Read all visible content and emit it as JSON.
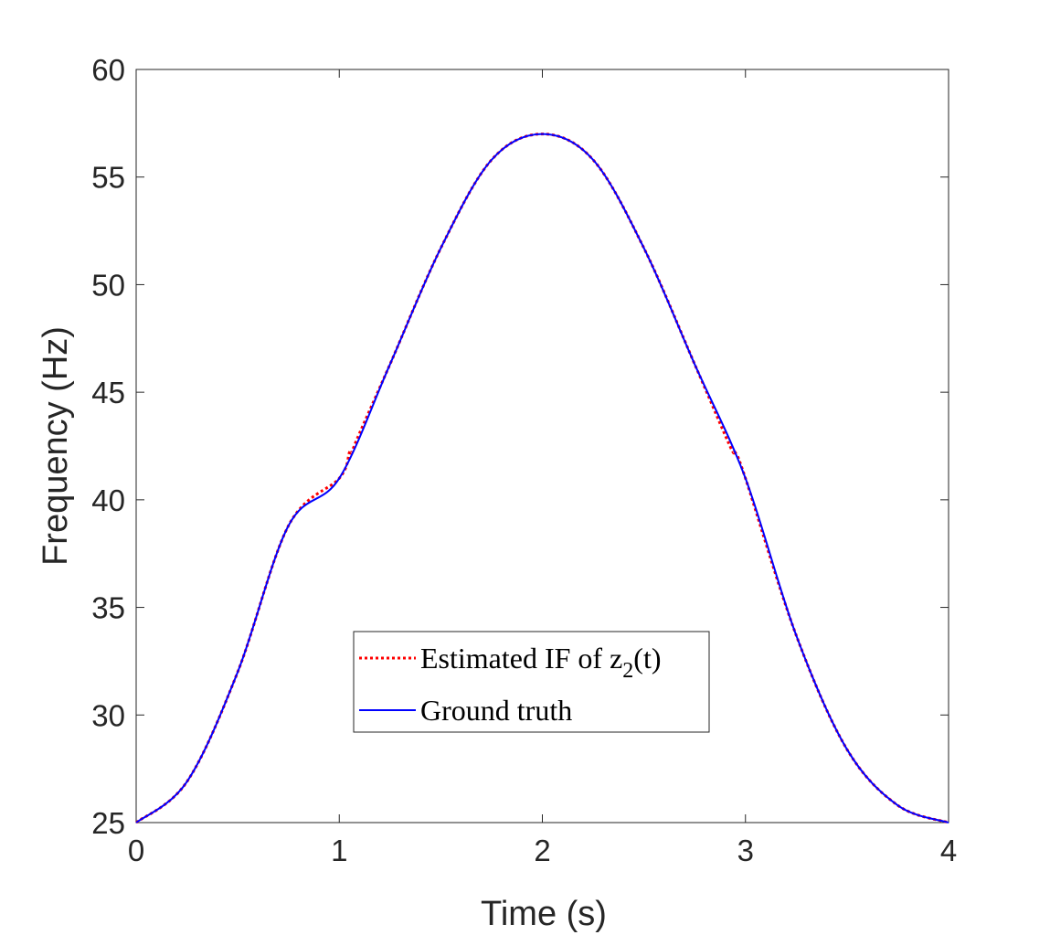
{
  "chart_data": {
    "type": "line",
    "title": "",
    "xlabel": "Time (s)",
    "ylabel": "Frequency (Hz)",
    "xlim": [
      0,
      4
    ],
    "ylim": [
      25,
      60
    ],
    "xticks": [
      0,
      1,
      2,
      3,
      4
    ],
    "xtick_labels": [
      "0",
      "1",
      "2",
      "3",
      "4"
    ],
    "yticks": [
      25,
      30,
      35,
      40,
      45,
      50,
      55,
      60
    ],
    "ytick_labels": [
      "25",
      "30",
      "35",
      "40",
      "45",
      "50",
      "55",
      "60"
    ],
    "grid": false,
    "legend_position": "center",
    "legend": [
      {
        "label_main": "Estimated IF of z",
        "label_sub": "2",
        "label_tail": "(t)",
        "style": "dotted",
        "color": "#ff0000"
      },
      {
        "label_main": "Ground truth",
        "label_sub": "",
        "label_tail": "",
        "style": "solid",
        "color": "#0000ff"
      }
    ],
    "series": [
      {
        "name": "Estimated IF of z2(t)",
        "color": "#ff0000",
        "style": "dotted",
        "x": [
          0,
          0.25,
          0.5,
          0.75,
          1.0,
          1.05,
          1.06,
          1.1,
          1.25,
          1.5,
          1.75,
          2.0,
          2.25,
          2.5,
          2.75,
          2.9,
          2.94,
          2.95,
          3.0,
          3.25,
          3.5,
          3.75,
          4.0
        ],
        "y": [
          25,
          26.9,
          32.0,
          38.8,
          41.0,
          42.2,
          42.2,
          43.1,
          46.3,
          51.7,
          55.8,
          57.0,
          55.8,
          51.7,
          46.3,
          43.0,
          42.2,
          42.2,
          41.0,
          33.7,
          28.4,
          25.8,
          25
        ]
      },
      {
        "name": "Ground truth",
        "color": "#0000ff",
        "style": "solid",
        "x": [
          0,
          0.25,
          0.5,
          0.75,
          1.0,
          1.25,
          1.5,
          1.75,
          2.0,
          2.25,
          2.5,
          2.75,
          3.0,
          3.25,
          3.5,
          3.75,
          4.0
        ],
        "y": [
          25,
          26.9,
          32.0,
          38.8,
          41.0,
          46.3,
          51.7,
          55.8,
          57.0,
          55.8,
          51.7,
          46.3,
          41.0,
          33.7,
          28.4,
          25.8,
          25
        ]
      }
    ]
  }
}
